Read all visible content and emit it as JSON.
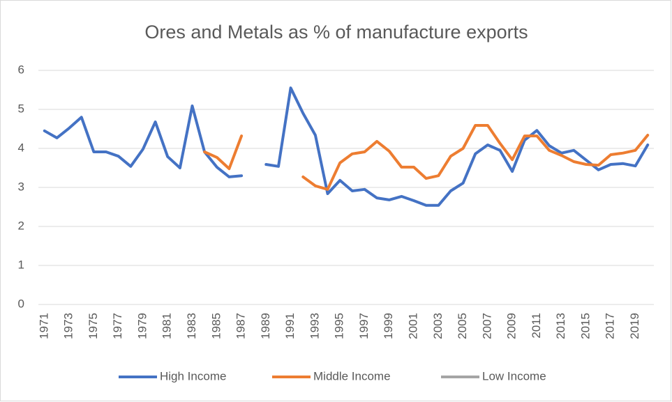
{
  "chart_data": {
    "type": "line",
    "title": "Ores and Metals as % of manufacture exports",
    "categories": [
      "1971",
      null,
      "1973",
      null,
      "1975",
      null,
      "1977",
      null,
      "1979",
      null,
      "1981",
      null,
      "1983",
      null,
      "1985",
      null,
      "1987",
      null,
      "1989",
      null,
      "1991",
      null,
      "1993",
      null,
      "1995",
      null,
      "1997",
      null,
      "1999",
      null,
      "2001",
      null,
      "2003",
      null,
      "2005",
      null,
      "2007",
      null,
      "2009",
      null,
      "2011",
      null,
      "2013",
      null,
      "2015",
      null,
      "2017",
      null,
      "2019",
      null
    ],
    "series": [
      {
        "name": "High Income",
        "color": "#4472c4",
        "values": [
          4.45,
          4.27,
          4.52,
          4.8,
          3.91,
          3.91,
          3.8,
          3.54,
          3.98,
          4.68,
          3.79,
          3.5,
          5.09,
          3.91,
          3.52,
          3.27,
          3.3,
          null,
          3.59,
          3.54,
          5.55,
          4.9,
          4.34,
          2.84,
          3.18,
          2.91,
          2.95,
          2.73,
          2.68,
          2.77,
          2.66,
          2.54,
          2.54,
          2.91,
          3.11,
          3.86,
          4.09,
          3.95,
          3.41,
          4.21,
          4.46,
          4.07,
          3.88,
          3.95,
          3.7,
          3.45,
          3.59,
          3.61,
          3.55,
          4.09
        ]
      },
      {
        "name": "Middle Income",
        "color": "#ed7d31",
        "values": [
          null,
          null,
          null,
          null,
          null,
          null,
          null,
          null,
          null,
          null,
          null,
          null,
          null,
          3.91,
          3.77,
          3.48,
          4.32,
          null,
          null,
          null,
          null,
          3.27,
          3.04,
          2.95,
          3.63,
          3.86,
          3.91,
          4.18,
          3.93,
          3.52,
          3.52,
          3.23,
          3.3,
          3.8,
          4.0,
          4.59,
          4.59,
          4.13,
          3.71,
          4.32,
          4.32,
          3.95,
          3.82,
          3.66,
          3.59,
          3.57,
          3.84,
          3.88,
          3.95,
          4.34
        ]
      },
      {
        "name": "Low Income",
        "color": "#a5a5a5",
        "values": [
          null,
          null,
          null,
          null,
          null,
          null,
          null,
          null,
          null,
          null,
          null,
          null,
          null,
          null,
          null,
          null,
          null,
          null,
          null,
          null,
          null,
          null,
          null,
          null,
          null,
          null,
          null,
          null,
          null,
          null,
          null,
          null,
          null,
          null,
          null,
          null,
          null,
          null,
          null,
          null,
          null,
          null,
          null,
          null,
          null,
          null,
          null,
          null,
          null,
          null
        ]
      }
    ],
    "ylim": [
      0,
      6
    ],
    "yticks": [
      0,
      1,
      2,
      3,
      4,
      5,
      6
    ],
    "grid": true
  }
}
